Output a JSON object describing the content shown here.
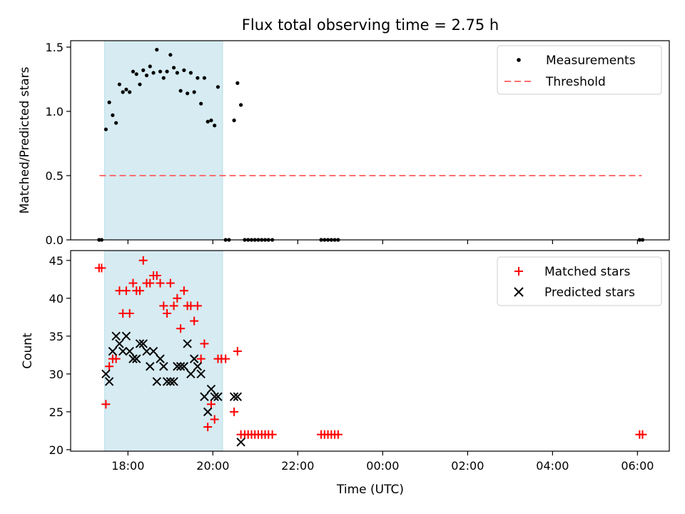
{
  "title": "Flux total observing time = 2.75 h",
  "colors": {
    "measurement": "#000000",
    "threshold": "#ff6f6f",
    "matched": "#ff0000",
    "predicted": "#000000",
    "shade": "#add8e6"
  },
  "chart_data": [
    {
      "type": "scatter",
      "ylabel": "Matched/Predicted stars",
      "ylim": [
        0,
        1.55
      ],
      "yticks": [
        0.0,
        0.5,
        1.0,
        1.5
      ],
      "ytick_labels": [
        "0.0",
        "0.5",
        "1.0",
        "1.5"
      ],
      "xlim": [
        16.65,
        30.75
      ],
      "shaded_span": [
        17.45,
        20.23
      ],
      "legend": {
        "position": "top-right",
        "entries": [
          "Measurements",
          "Threshold"
        ]
      },
      "threshold": {
        "name": "Threshold",
        "value": 0.5,
        "x_range": [
          17.33,
          30.1
        ]
      },
      "measurements": [
        [
          17.32,
          0
        ],
        [
          17.38,
          0
        ],
        [
          17.48,
          0.86
        ],
        [
          17.56,
          1.07
        ],
        [
          17.64,
          0.97
        ],
        [
          17.72,
          0.91
        ],
        [
          17.8,
          1.21
        ],
        [
          17.88,
          1.15
        ],
        [
          17.96,
          1.17
        ],
        [
          18.04,
          1.15
        ],
        [
          18.12,
          1.31
        ],
        [
          18.2,
          1.29
        ],
        [
          18.28,
          1.21
        ],
        [
          18.36,
          1.32
        ],
        [
          18.44,
          1.28
        ],
        [
          18.52,
          1.35
        ],
        [
          18.6,
          1.3
        ],
        [
          18.68,
          1.48
        ],
        [
          18.76,
          1.31
        ],
        [
          18.84,
          1.26
        ],
        [
          18.92,
          1.31
        ],
        [
          19.0,
          1.44
        ],
        [
          19.08,
          1.34
        ],
        [
          19.16,
          1.3
        ],
        [
          19.24,
          1.16
        ],
        [
          19.32,
          1.32
        ],
        [
          19.4,
          1.14
        ],
        [
          19.48,
          1.3
        ],
        [
          19.56,
          1.15
        ],
        [
          19.64,
          1.26
        ],
        [
          19.72,
          1.06
        ],
        [
          19.8,
          1.26
        ],
        [
          19.88,
          0.92
        ],
        [
          19.96,
          0.93
        ],
        [
          20.04,
          0.89
        ],
        [
          20.12,
          1.19
        ],
        [
          20.3,
          0
        ],
        [
          20.38,
          0
        ],
        [
          20.5,
          0.93
        ],
        [
          20.58,
          1.22
        ],
        [
          20.66,
          1.05
        ],
        [
          20.75,
          0
        ],
        [
          20.83,
          0
        ],
        [
          20.91,
          0
        ],
        [
          20.99,
          0
        ],
        [
          21.07,
          0
        ],
        [
          21.15,
          0
        ],
        [
          21.23,
          0
        ],
        [
          21.31,
          0
        ],
        [
          21.4,
          0
        ],
        [
          22.55,
          0
        ],
        [
          22.63,
          0
        ],
        [
          22.71,
          0
        ],
        [
          22.79,
          0
        ],
        [
          22.87,
          0
        ],
        [
          22.95,
          0
        ],
        [
          30.05,
          0
        ],
        [
          30.12,
          0
        ]
      ]
    },
    {
      "type": "scatter",
      "ylabel": "Count",
      "xlabel": "Time (UTC)",
      "ylim": [
        19.8,
        46.3
      ],
      "yticks": [
        20,
        25,
        30,
        35,
        40,
        45
      ],
      "ytick_labels": [
        "20",
        "25",
        "30",
        "35",
        "40",
        "45"
      ],
      "xlim": [
        16.65,
        30.75
      ],
      "xticks": [
        18,
        20,
        22,
        24,
        26,
        28,
        30
      ],
      "xtick_labels": [
        "18:00",
        "20:00",
        "22:00",
        "00:00",
        "02:00",
        "04:00",
        "06:00"
      ],
      "shaded_span": [
        17.45,
        20.23
      ],
      "legend": {
        "position": "top-right",
        "entries": [
          "Matched stars",
          "Predicted stars"
        ]
      },
      "series": [
        {
          "name": "Matched stars",
          "marker": "+",
          "points": [
            [
              17.32,
              44
            ],
            [
              17.38,
              44
            ],
            [
              17.48,
              26
            ],
            [
              17.56,
              31
            ],
            [
              17.64,
              32
            ],
            [
              17.72,
              32
            ],
            [
              17.8,
              41
            ],
            [
              17.88,
              38
            ],
            [
              17.96,
              41
            ],
            [
              18.04,
              38
            ],
            [
              18.12,
              42
            ],
            [
              18.2,
              41
            ],
            [
              18.28,
              41
            ],
            [
              18.36,
              45
            ],
            [
              18.44,
              42
            ],
            [
              18.52,
              42
            ],
            [
              18.6,
              43
            ],
            [
              18.68,
              43
            ],
            [
              18.76,
              42
            ],
            [
              18.84,
              39
            ],
            [
              18.92,
              38
            ],
            [
              19.0,
              42
            ],
            [
              19.08,
              39
            ],
            [
              19.16,
              40
            ],
            [
              19.24,
              36
            ],
            [
              19.32,
              41
            ],
            [
              19.4,
              39
            ],
            [
              19.48,
              39
            ],
            [
              19.56,
              37
            ],
            [
              19.64,
              39
            ],
            [
              19.72,
              32
            ],
            [
              19.8,
              34
            ],
            [
              19.88,
              23
            ],
            [
              19.96,
              26
            ],
            [
              20.04,
              24
            ],
            [
              20.12,
              32
            ],
            [
              20.2,
              32
            ],
            [
              20.3,
              32
            ],
            [
              20.5,
              25
            ],
            [
              20.58,
              33
            ],
            [
              20.66,
              22
            ],
            [
              20.75,
              22
            ],
            [
              20.83,
              22
            ],
            [
              20.91,
              22
            ],
            [
              20.99,
              22
            ],
            [
              21.07,
              22
            ],
            [
              21.15,
              22
            ],
            [
              21.23,
              22
            ],
            [
              21.31,
              22
            ],
            [
              21.4,
              22
            ],
            [
              22.55,
              22
            ],
            [
              22.63,
              22
            ],
            [
              22.71,
              22
            ],
            [
              22.79,
              22
            ],
            [
              22.87,
              22
            ],
            [
              22.95,
              22
            ],
            [
              30.05,
              22
            ],
            [
              30.12,
              22
            ]
          ]
        },
        {
          "name": "Predicted stars",
          "marker": "x",
          "points": [
            [
              17.48,
              30
            ],
            [
              17.56,
              29
            ],
            [
              17.64,
              33
            ],
            [
              17.72,
              35
            ],
            [
              17.8,
              34
            ],
            [
              17.88,
              33
            ],
            [
              17.96,
              35
            ],
            [
              18.04,
              33
            ],
            [
              18.12,
              32
            ],
            [
              18.2,
              32
            ],
            [
              18.28,
              34
            ],
            [
              18.36,
              34
            ],
            [
              18.44,
              33
            ],
            [
              18.52,
              31
            ],
            [
              18.6,
              33
            ],
            [
              18.68,
              29
            ],
            [
              18.76,
              32
            ],
            [
              18.84,
              31
            ],
            [
              18.92,
              29
            ],
            [
              19.0,
              29
            ],
            [
              19.08,
              29
            ],
            [
              19.16,
              31
            ],
            [
              19.24,
              31
            ],
            [
              19.32,
              31
            ],
            [
              19.4,
              34
            ],
            [
              19.48,
              30
            ],
            [
              19.56,
              32
            ],
            [
              19.64,
              31
            ],
            [
              19.72,
              30
            ],
            [
              19.8,
              27
            ],
            [
              19.88,
              25
            ],
            [
              19.96,
              28
            ],
            [
              20.04,
              27
            ],
            [
              20.12,
              27
            ],
            [
              20.5,
              27
            ],
            [
              20.58,
              27
            ],
            [
              20.66,
              21
            ]
          ]
        }
      ]
    }
  ]
}
